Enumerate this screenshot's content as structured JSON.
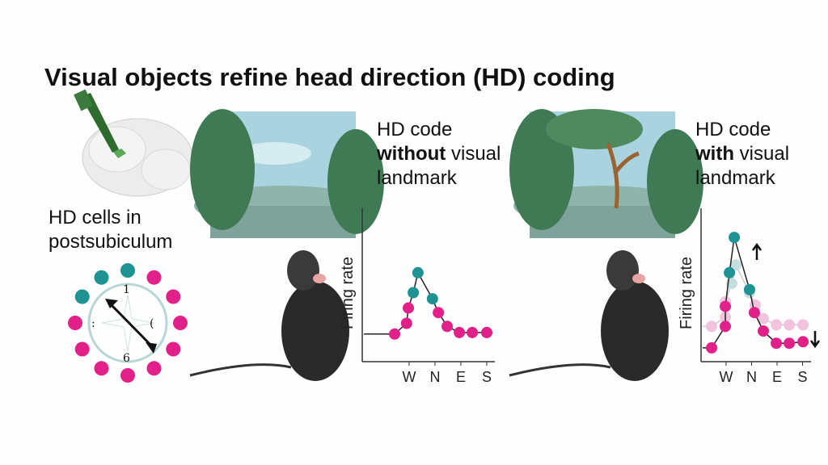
{
  "title": "Visual objects refine head direction (HD) coding",
  "cells_label": {
    "line1": "HD cells in",
    "line2": "postsubiculum"
  },
  "compass_marks": {
    "top": "1",
    "left": ":",
    "right": "(",
    "bottom": "6"
  },
  "panel_without": {
    "line1": "HD code",
    "bold": "without",
    "rest": " visual",
    "line3": "landmark"
  },
  "panel_with": {
    "line1": "HD code",
    "bold": "with",
    "rest": " visual",
    "line3": "landmark"
  },
  "colors": {
    "teal": "#1f9294",
    "magenta": "#e2208a",
    "faded_teal": "#c4dedd",
    "faded_magenta": "#f2c3dc",
    "ring": "#b8d6d6"
  },
  "icons": [
    "brain-with-electrode",
    "compass-arrow",
    "landscape",
    "landscape-with-tree",
    "mouse",
    "arrow-up-icon",
    "arrow-down-icon"
  ],
  "chart_data": [
    {
      "type": "line",
      "ylabel": "Firing rate",
      "xticks": [
        "W",
        "N",
        "E",
        "S"
      ],
      "xtick_values": [
        1,
        2,
        3,
        4
      ],
      "series": [
        {
          "x": [
            0.44,
            0.9,
            0.97,
            1.16,
            1.34,
            1.9,
            2.13,
            2.47,
            2.94,
            3.44,
            4.0
          ],
          "y": [
            0.18,
            0.25,
            0.35,
            0.45,
            0.58,
            0.41,
            0.32,
            0.23,
            0.19,
            0.19,
            0.19
          ],
          "colors": [
            "magenta",
            "magenta",
            "magenta",
            "teal",
            "teal",
            "teal",
            "magenta",
            "magenta",
            "magenta",
            "magenta",
            "magenta"
          ]
        }
      ]
    },
    {
      "type": "line",
      "ylabel": "Firing rate",
      "xticks": [
        "W",
        "N",
        "E",
        "S"
      ],
      "xtick_values": [
        1,
        2,
        3,
        4
      ],
      "series": [
        {
          "faded": true,
          "x": [
            0.43,
            0.97,
            0.97,
            1.22,
            1.38,
            1.92,
            2.14,
            2.46,
            2.97,
            3.48,
            4.02
          ],
          "y": [
            0.23,
            0.29,
            0.39,
            0.51,
            0.63,
            0.45,
            0.37,
            0.28,
            0.24,
            0.24,
            0.24
          ],
          "colors": [
            "magenta",
            "magenta",
            "magenta",
            "teal",
            "teal",
            "teal",
            "magenta",
            "magenta",
            "magenta",
            "magenta",
            "magenta"
          ]
        },
        {
          "faded": false,
          "x": [
            0.43,
            0.97,
            0.97,
            1.13,
            1.32,
            1.92,
            2.11,
            2.46,
            2.97,
            3.48,
            4.02
          ],
          "y": [
            0.09,
            0.23,
            0.36,
            0.58,
            0.81,
            0.47,
            0.32,
            0.2,
            0.12,
            0.12,
            0.13
          ],
          "colors": [
            "magenta",
            "magenta",
            "magenta",
            "teal",
            "teal",
            "teal",
            "magenta",
            "magenta",
            "magenta",
            "magenta",
            "magenta"
          ]
        }
      ],
      "annotations": [
        "peak increases (up arrow)",
        "baseline decreases (down arrow)"
      ]
    }
  ]
}
